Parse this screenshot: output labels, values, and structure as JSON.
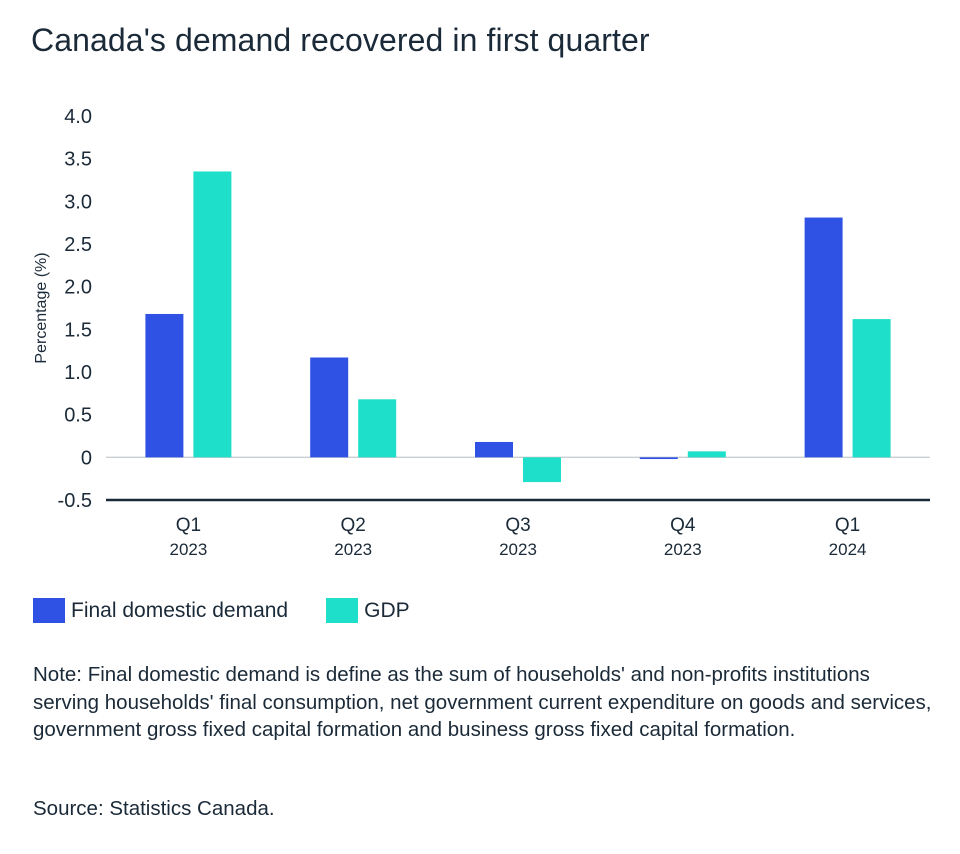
{
  "title": "Canada's demand recovered in first quarter",
  "chart_data": {
    "type": "bar",
    "categories": [
      "Q1",
      "Q2",
      "Q3",
      "Q4",
      "Q1"
    ],
    "category_years": [
      "2023",
      "2023",
      "2023",
      "2023",
      "2024"
    ],
    "series": [
      {
        "name": "Final domestic demand",
        "values": [
          1.68,
          1.17,
          0.18,
          -0.02,
          2.81
        ],
        "color": "#2f52e4"
      },
      {
        "name": "GDP",
        "values": [
          3.35,
          0.68,
          -0.29,
          0.07,
          1.62
        ],
        "color": "#1ddfca"
      }
    ],
    "ylabel": "Percentage (%)",
    "xlabel": "",
    "ylim": [
      -0.5,
      4.0
    ],
    "yticks": [
      4.0,
      3.5,
      3.0,
      2.5,
      2.0,
      1.5,
      1.0,
      0.5,
      0,
      -0.5
    ],
    "ytick_labels": [
      "4.0",
      "3.5",
      "3.0",
      "2.5",
      "2.0",
      "1.5",
      "1.0",
      "0.5",
      "0",
      "-0.5"
    ],
    "grid": false,
    "legend_position": "bottom-left"
  },
  "note": "Note: Final domestic demand is define as the sum of households' and non-profits institutions serving households' final consumption, net government current expenditure on goods and services, government gross fixed capital formation and business gross fixed capital formation.",
  "source": "Source: Statistics Canada."
}
